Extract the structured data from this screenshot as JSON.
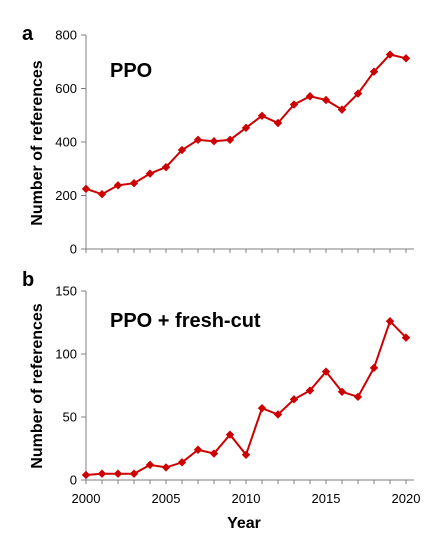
{
  "chart_data": [
    {
      "type": "line",
      "panel_label": "a",
      "inset_text": "PPO",
      "ylabel": "Number of references",
      "xlabel": "",
      "ylim": [
        0,
        800
      ],
      "yticks": [
        "0",
        "200",
        "400",
        "600",
        "800"
      ],
      "xlim": [
        2000,
        2020.5
      ],
      "color": "#cc0000",
      "x": [
        2000,
        2001,
        2002,
        2003,
        2004,
        2005,
        2006,
        2007,
        2008,
        2009,
        2010,
        2011,
        2012,
        2013,
        2014,
        2015,
        2016,
        2017,
        2018,
        2019,
        2020
      ],
      "values": [
        225,
        205,
        238,
        246,
        282,
        306,
        370,
        408,
        403,
        408,
        453,
        498,
        471,
        540,
        571,
        557,
        521,
        581,
        663,
        727,
        713
      ]
    },
    {
      "type": "line",
      "panel_label": "b",
      "inset_text": "PPO + fresh-cut",
      "ylabel": "Number of references",
      "xlabel": "Year",
      "ylim": [
        0,
        150
      ],
      "yticks": [
        "0",
        "50",
        "100",
        "150"
      ],
      "xlim": [
        2000,
        2020.5
      ],
      "xticks": [
        "2000",
        "2005",
        "2010",
        "2015",
        "2020"
      ],
      "color": "#cc0000",
      "x": [
        2000,
        2001,
        2002,
        2003,
        2004,
        2005,
        2006,
        2007,
        2008,
        2009,
        2010,
        2011,
        2012,
        2013,
        2014,
        2015,
        2016,
        2017,
        2018,
        2019,
        2020
      ],
      "values": [
        4,
        5,
        5,
        5,
        12,
        10,
        14,
        24,
        21,
        36,
        20,
        57,
        52,
        64,
        71,
        86,
        70,
        66,
        89,
        126,
        113
      ]
    }
  ]
}
